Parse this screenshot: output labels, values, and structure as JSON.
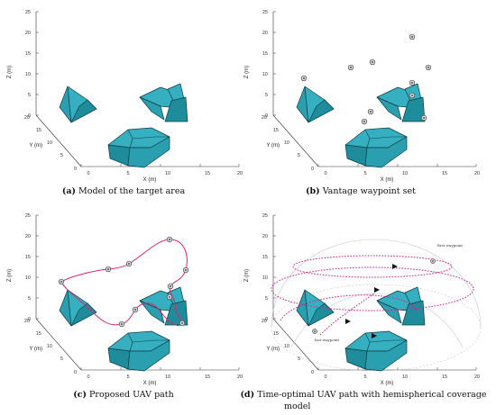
{
  "axes": {
    "z_label": "Z (m)",
    "y_label": "Y (m)",
    "x_label": "X (m)",
    "z_ticks": [
      "0",
      "5",
      "10",
      "15",
      "20",
      "25"
    ],
    "y_ticks": [
      "0",
      "5",
      "10",
      "15",
      "20"
    ],
    "x_ticks": [
      "0",
      "5",
      "10",
      "15",
      "20"
    ]
  },
  "panels": [
    {
      "id": "a",
      "letter": "(a)",
      "caption": "Model of the target area"
    },
    {
      "id": "b",
      "letter": "(b)",
      "caption": "Vantage waypoint set"
    },
    {
      "id": "c",
      "letter": "(c)",
      "caption": "Proposed UAV path"
    },
    {
      "id": "d",
      "letter": "(d)",
      "caption": "Time-optimal UAV path with hemispherical coverage",
      "caption_line2": "model"
    }
  ],
  "annotations": {
    "first_waypoint": "first waypoint",
    "last_waypoint": "last waypoint"
  },
  "colors": {
    "building_top": "#36b0c0",
    "building_front": "#1f8c9c",
    "path": "#e0226e"
  }
}
